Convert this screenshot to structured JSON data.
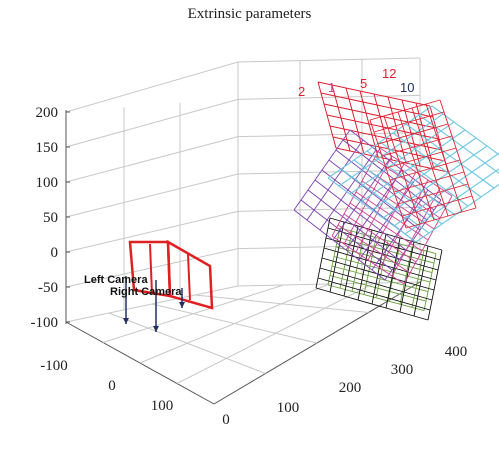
{
  "chart_data": {
    "type": "3d-wireframe",
    "title": "Extrinsic parameters",
    "z_ticks": [
      "200",
      "150",
      "100",
      "50",
      "0",
      "-50",
      "-100"
    ],
    "y_ticks": [
      "-100",
      "0",
      "100"
    ],
    "x_ticks": [
      "0",
      "100",
      "200",
      "300",
      "400"
    ],
    "grid": true,
    "camera_labels": [
      "Left Camera",
      "Right Camera"
    ],
    "board_numbers": [
      "2",
      "1",
      "5",
      "12",
      "10"
    ],
    "colors": {
      "grid": "#c8c8c8",
      "axis": "#555555",
      "camera": "#e02020",
      "red_board": "#e02030",
      "cyan_board": "#6ec8e0",
      "purple_board": "#7a40b0",
      "pink_board": "#d04090",
      "black_board": "#111111",
      "green_board": "#6aa040",
      "navy": "#203060"
    }
  }
}
